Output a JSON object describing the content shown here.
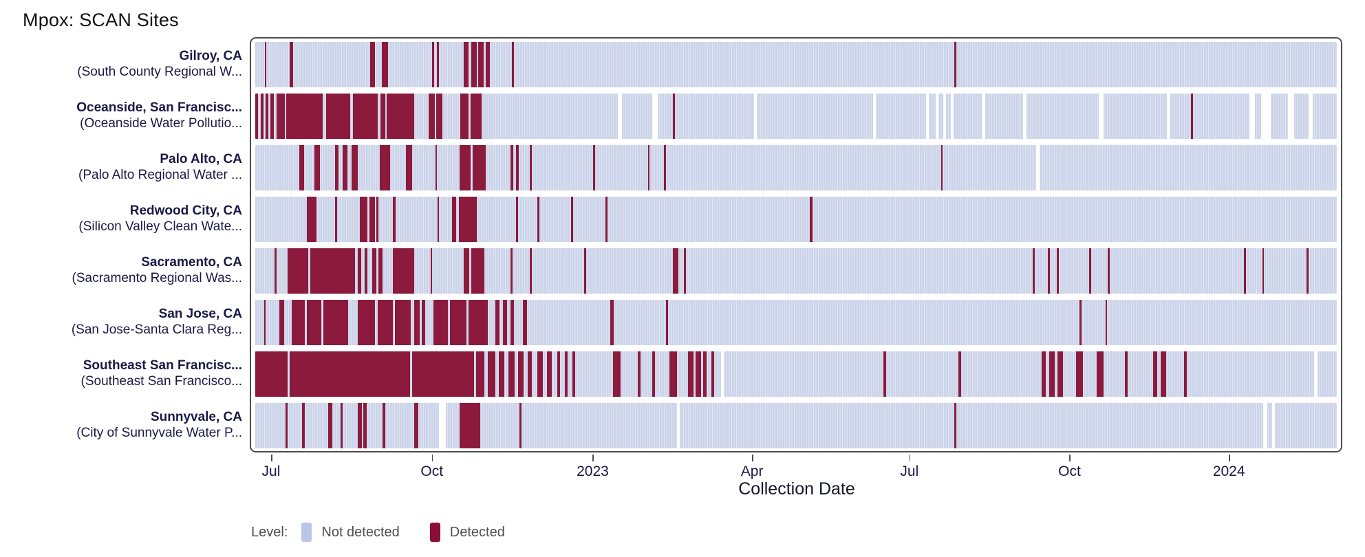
{
  "title": "Mpox: SCAN Sites",
  "axis": {
    "label": "Collection Date",
    "ticks": [
      {
        "label": "Jul",
        "pos": 1.46
      },
      {
        "label": "Oct",
        "pos": 16.31
      },
      {
        "label": "2023",
        "pos": 31.16
      },
      {
        "label": "Apr",
        "pos": 45.88
      },
      {
        "label": "Jul",
        "pos": 60.41
      },
      {
        "label": "Oct",
        "pos": 75.19
      },
      {
        "label": "2024",
        "pos": 89.91
      }
    ]
  },
  "legend": {
    "label": "Level:",
    "items": [
      {
        "label": "Not detected",
        "color": "#b9c6e8"
      },
      {
        "label": "Detected",
        "color": "#8a0f35"
      }
    ]
  },
  "colors": {
    "not_detected_band": "#cbd3e9",
    "band_separator": "#e1e6f3",
    "detected_stripe": "#8b1a3c",
    "missing": "#ffffff",
    "panel_border": "#4d4d4d",
    "site_text": "#191947",
    "legend_text": "#4f4f4f"
  },
  "chart_data": {
    "type": "heatmap",
    "x_range": [
      "2022-06-19",
      "2024-03-05"
    ],
    "x_unit": "collection day; pos/width are % of plot width",
    "value_levels": [
      "Not detected",
      "Detected"
    ],
    "rows": [
      {
        "site": "Gilroy, CA",
        "facility": "(South County Regional W...",
        "detected": [
          [
            0.9,
            0.15
          ],
          [
            3.2,
            0.3
          ],
          [
            10.6,
            0.5
          ],
          [
            11.7,
            0.55
          ],
          [
            16.35,
            0.18
          ],
          [
            16.8,
            0.18
          ],
          [
            19.3,
            0.45
          ],
          [
            19.95,
            0.55
          ],
          [
            20.6,
            0.55
          ],
          [
            21.3,
            0.4
          ],
          [
            23.7,
            0.2
          ],
          [
            64.6,
            0.2
          ]
        ],
        "missing": []
      },
      {
        "site": "Oceanside, San Francisc...",
        "facility": "(Oceanside Water Pollutio...",
        "detected": [
          [
            0.0,
            0.28
          ],
          [
            0.5,
            0.28
          ],
          [
            0.95,
            0.28
          ],
          [
            1.42,
            0.28
          ],
          [
            1.96,
            0.75
          ],
          [
            2.85,
            3.4
          ],
          [
            6.55,
            2.2
          ],
          [
            9.05,
            2.3
          ],
          [
            11.6,
            0.4
          ],
          [
            12.15,
            2.55
          ],
          [
            16.0,
            0.6
          ],
          [
            16.75,
            0.55
          ],
          [
            18.94,
            0.8
          ],
          [
            19.9,
            1.0
          ],
          [
            38.6,
            0.2
          ],
          [
            86.5,
            0.22
          ]
        ],
        "missing": [
          [
            33.5,
            0.4
          ],
          [
            36.7,
            0.5
          ],
          [
            46.1,
            0.3
          ],
          [
            57.1,
            0.3
          ],
          [
            62.0,
            0.3
          ],
          [
            62.9,
            0.3
          ],
          [
            63.6,
            0.3
          ],
          [
            64.3,
            0.3
          ],
          [
            67.2,
            0.3
          ],
          [
            71.0,
            0.3
          ],
          [
            78.0,
            0.45
          ],
          [
            84.3,
            0.3
          ],
          [
            91.9,
            0.55
          ],
          [
            93.0,
            0.9
          ],
          [
            95.5,
            0.55
          ],
          [
            97.4,
            0.4
          ]
        ]
      },
      {
        "site": "Palo Alto, CA",
        "facility": "(Palo Alto Regional Water ...",
        "detected": [
          [
            4.04,
            0.5
          ],
          [
            5.5,
            0.5
          ],
          [
            7.4,
            0.3
          ],
          [
            8.1,
            0.4
          ],
          [
            8.9,
            0.6
          ],
          [
            11.5,
            0.95
          ],
          [
            13.9,
            0.6
          ],
          [
            16.65,
            0.16
          ],
          [
            18.9,
            1.0
          ],
          [
            20.1,
            1.2
          ],
          [
            23.6,
            0.25
          ],
          [
            24.1,
            0.25
          ],
          [
            25.4,
            0.16
          ],
          [
            31.25,
            0.16
          ],
          [
            36.3,
            0.16
          ],
          [
            37.8,
            0.16
          ],
          [
            63.4,
            0.16
          ]
        ],
        "missing": [
          [
            72.2,
            0.3
          ]
        ]
      },
      {
        "site": "Redwood City, CA",
        "facility": "(Silicon Valley Clean Wate...",
        "detected": [
          [
            4.8,
            0.85
          ],
          [
            7.4,
            0.2
          ],
          [
            9.7,
            0.65
          ],
          [
            10.55,
            0.5
          ],
          [
            11.2,
            0.2
          ],
          [
            12.75,
            0.2
          ],
          [
            16.85,
            0.12
          ],
          [
            18.2,
            0.4
          ],
          [
            18.8,
            1.7
          ],
          [
            24.1,
            0.2
          ],
          [
            26.1,
            0.2
          ],
          [
            29.2,
            0.2
          ],
          [
            32.4,
            0.2
          ],
          [
            51.3,
            0.2
          ]
        ],
        "missing": []
      },
      {
        "site": "Sacramento, CA",
        "facility": "(Sacramento Regional Was...",
        "detected": [
          [
            1.77,
            0.18
          ],
          [
            3.0,
            1.9
          ],
          [
            5.1,
            4.1
          ],
          [
            9.5,
            0.3
          ],
          [
            10.1,
            0.3
          ],
          [
            10.8,
            0.4
          ],
          [
            11.4,
            0.4
          ],
          [
            12.75,
            1.95
          ],
          [
            16.2,
            0.18
          ],
          [
            19.3,
            0.5
          ],
          [
            20.0,
            1.2
          ],
          [
            23.6,
            0.18
          ],
          [
            25.4,
            0.18
          ],
          [
            30.4,
            0.18
          ],
          [
            38.6,
            0.55
          ],
          [
            39.65,
            0.18
          ],
          [
            71.9,
            0.18
          ],
          [
            73.3,
            0.18
          ],
          [
            74.1,
            0.18
          ],
          [
            77.1,
            0.18
          ],
          [
            78.8,
            0.18
          ],
          [
            91.4,
            0.18
          ],
          [
            93.1,
            0.18
          ],
          [
            97.2,
            0.18
          ]
        ],
        "missing": []
      },
      {
        "site": "San Jose, CA",
        "facility": "(San Jose-Santa Clara Reg...",
        "detected": [
          [
            0.8,
            0.18
          ],
          [
            2.2,
            0.45
          ],
          [
            3.4,
            1.2
          ],
          [
            4.8,
            1.3
          ],
          [
            6.3,
            2.3
          ],
          [
            9.5,
            1.6
          ],
          [
            11.3,
            1.4
          ],
          [
            12.9,
            1.5
          ],
          [
            14.7,
            0.5
          ],
          [
            15.4,
            0.3
          ],
          [
            16.5,
            1.3
          ],
          [
            18.0,
            1.5
          ],
          [
            19.7,
            1.8
          ],
          [
            22.2,
            0.4
          ],
          [
            22.9,
            0.4
          ],
          [
            23.6,
            0.3
          ],
          [
            24.75,
            0.35
          ],
          [
            32.8,
            0.35
          ],
          [
            38.0,
            0.18
          ],
          [
            76.2,
            0.18
          ],
          [
            78.6,
            0.18
          ]
        ],
        "missing": []
      },
      {
        "site": "Southeast San Francisc...",
        "facility": "(Southeast San Francisco...",
        "detected": [
          [
            0.0,
            3.0
          ],
          [
            3.2,
            11.1
          ],
          [
            14.5,
            5.7
          ],
          [
            20.4,
            0.8
          ],
          [
            21.5,
            0.7
          ],
          [
            22.5,
            0.5
          ],
          [
            23.4,
            0.6
          ],
          [
            24.3,
            0.5
          ],
          [
            25.2,
            0.4
          ],
          [
            26.1,
            0.5
          ],
          [
            27.0,
            0.4
          ],
          [
            27.9,
            0.3
          ],
          [
            28.6,
            0.3
          ],
          [
            29.3,
            0.25
          ],
          [
            33.1,
            0.7
          ],
          [
            35.4,
            0.25
          ],
          [
            36.7,
            0.25
          ],
          [
            38.3,
            0.7
          ],
          [
            40.0,
            0.5
          ],
          [
            40.7,
            0.5
          ],
          [
            41.4,
            0.3
          ],
          [
            42.2,
            0.25
          ],
          [
            58.1,
            0.25
          ],
          [
            65.0,
            0.25
          ],
          [
            72.7,
            0.4
          ],
          [
            73.4,
            0.5
          ],
          [
            74.2,
            0.5
          ],
          [
            75.9,
            0.65
          ],
          [
            77.8,
            0.65
          ],
          [
            80.4,
            0.25
          ],
          [
            83.0,
            0.4
          ],
          [
            83.7,
            0.5
          ],
          [
            85.9,
            0.25
          ]
        ],
        "missing": [
          [
            43.05,
            0.28
          ],
          [
            97.9,
            0.3
          ]
        ]
      },
      {
        "site": "Sunnyvale, CA",
        "facility": "(City of Sunnyvale Water P...",
        "detected": [
          [
            2.8,
            0.2
          ],
          [
            4.35,
            0.2
          ],
          [
            6.75,
            0.4
          ],
          [
            7.9,
            0.15
          ],
          [
            9.5,
            0.35
          ],
          [
            10.0,
            0.3
          ],
          [
            11.8,
            0.2
          ],
          [
            14.7,
            0.4
          ],
          [
            18.9,
            1.9
          ],
          [
            24.4,
            0.2
          ],
          [
            64.6,
            0.25
          ]
        ],
        "missing": [
          [
            17.0,
            0.6
          ],
          [
            39.0,
            0.28
          ],
          [
            93.2,
            0.35
          ],
          [
            94.0,
            0.3
          ]
        ]
      }
    ]
  }
}
